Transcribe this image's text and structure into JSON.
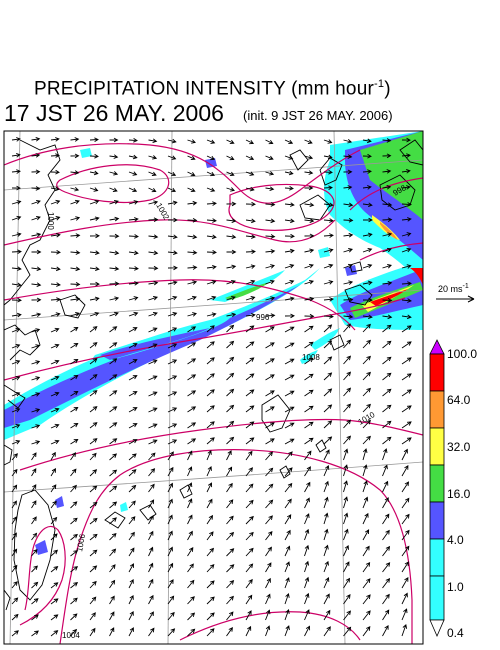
{
  "header": {
    "title_main": "PRECIPITATION INTENSITY (mm hour",
    "title_exp": "-1",
    "title_end": ")",
    "valid_time": "17 JST 26 MAY. 2006",
    "init_time": "(init. 9 JST 26 MAY. 2006)"
  },
  "wind_scale": {
    "value": "20 ms",
    "exp": "-1"
  },
  "pressure_contours": [
    "996",
    "998",
    "1000",
    "1002",
    "1004",
    "1006",
    "1008",
    "1010"
  ],
  "colorbar": {
    "labels": [
      "100.0",
      "64.0",
      "32.0",
      "16.0",
      "4.0",
      "1.0",
      "0.4"
    ],
    "colors": [
      "#ff00ff",
      "#ff0000",
      "#ff9933",
      "#ffff44",
      "#44dd44",
      "#5555ff",
      "#33ffff"
    ]
  },
  "colors": {
    "land": "#000000",
    "isobar": "#cc0066",
    "grid": "#999999",
    "arrow": "#000000"
  }
}
